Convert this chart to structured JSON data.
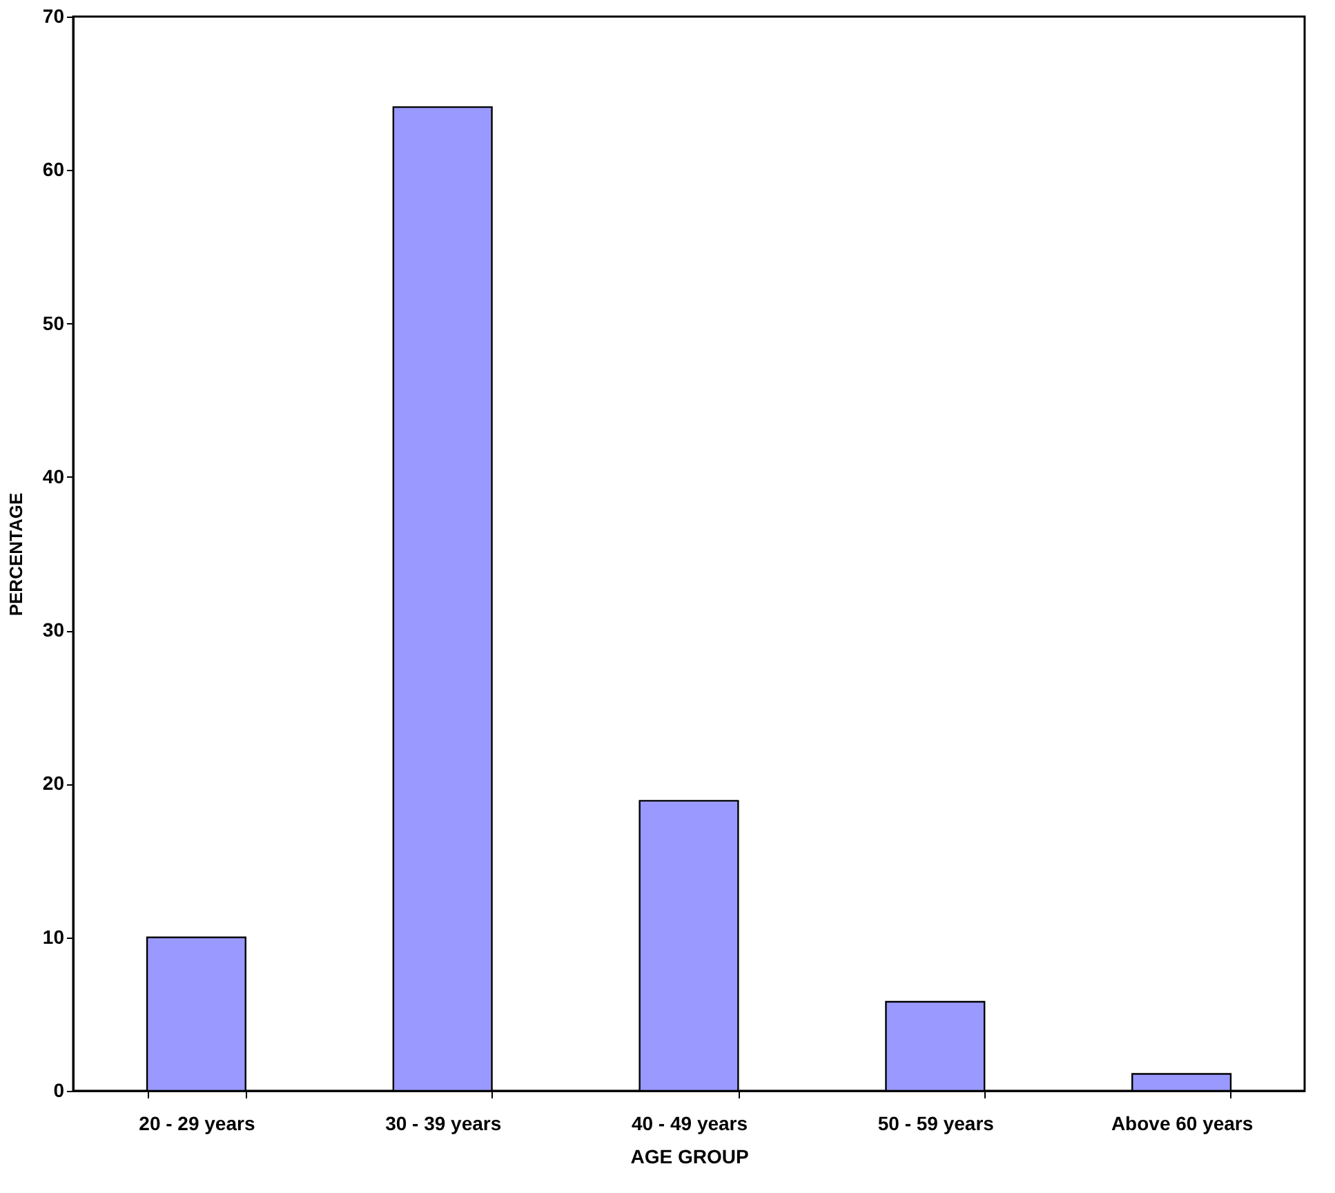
{
  "chart_data": {
    "type": "bar",
    "categories": [
      "20 - 29 years",
      "30 - 39 years",
      "40 - 49 years",
      "50 - 59 years",
      "Above 60 years"
    ],
    "values": [
      10,
      64.1,
      18.9,
      5.8,
      1.1
    ],
    "color": "#9999ff",
    "xlabel": "AGE GROUP",
    "ylabel": "PERCENTAGE",
    "ylim": [
      0,
      70
    ],
    "yticks": [
      0,
      10,
      20,
      30,
      40,
      50,
      60,
      70
    ],
    "grid": false
  }
}
